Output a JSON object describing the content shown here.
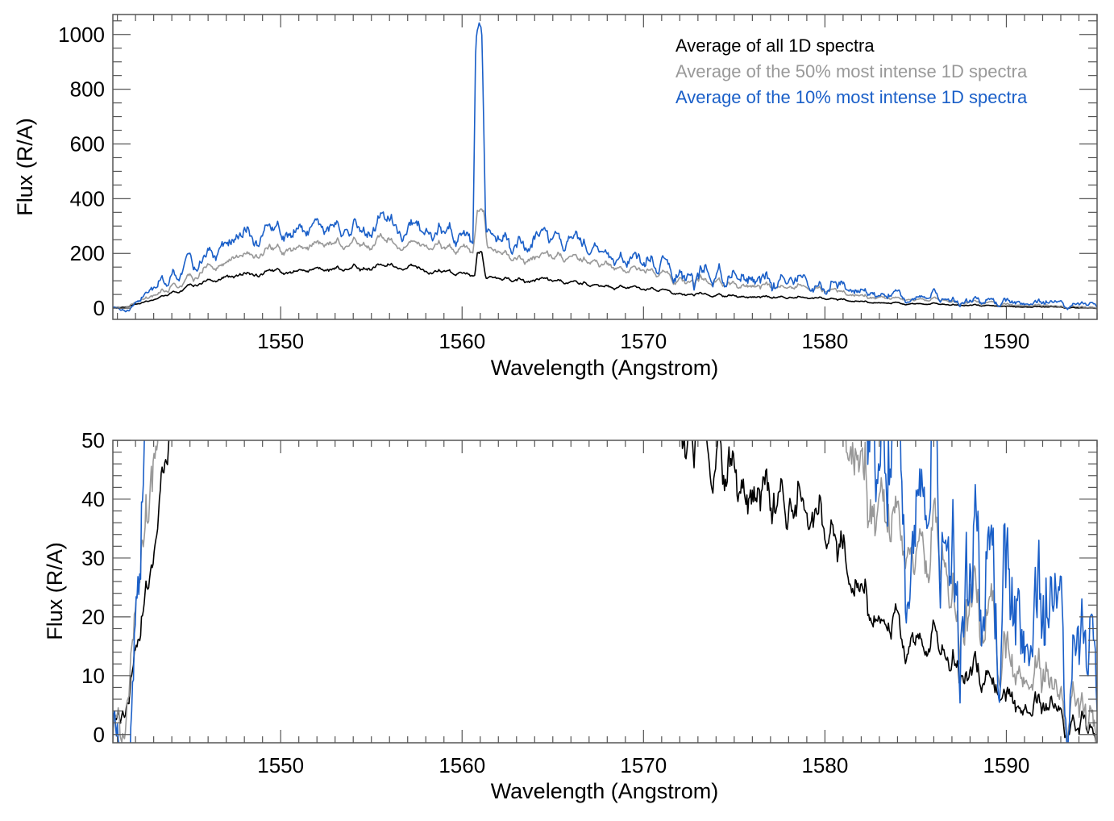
{
  "chart_data": [
    {
      "type": "line",
      "panel": "top",
      "title": "",
      "xlabel": "Wavelength (Angstrom)",
      "ylabel": "Flux (R/A)",
      "xlim": [
        1540.75,
        1595.0
      ],
      "ylim": [
        -41,
        1073
      ],
      "xticks": [
        1550,
        1560,
        1570,
        1580,
        1590
      ],
      "xtick_labels": [
        "1550",
        "1560",
        "1570",
        "1580",
        "1590"
      ],
      "x_minor_step": 1,
      "yticks": [
        0,
        200,
        400,
        600,
        800,
        1000
      ],
      "ytick_labels": [
        "0",
        "200",
        "400",
        "600",
        "800",
        "1000"
      ],
      "y_minor_step": 50,
      "grid": false,
      "legend_position": "top-right",
      "noise_seed": 7,
      "series": [
        {
          "name": "Average of all 1D spectra",
          "color": "#000000",
          "noise_amp": 12,
          "anchors": [
            [
              1540.75,
              5
            ],
            [
              1541.5,
              5
            ],
            [
              1543,
              30
            ],
            [
              1545,
              80
            ],
            [
              1547,
              115
            ],
            [
              1549,
              130
            ],
            [
              1552,
              140
            ],
            [
              1555,
              150
            ],
            [
              1557,
              150
            ],
            [
              1559,
              130
            ],
            [
              1560.7,
              125
            ],
            [
              1560.85,
              210
            ],
            [
              1561.1,
              210
            ],
            [
              1561.3,
              115
            ],
            [
              1563,
              110
            ],
            [
              1566,
              95
            ],
            [
              1568,
              80
            ],
            [
              1570,
              70
            ],
            [
              1573,
              50
            ],
            [
              1576,
              40
            ],
            [
              1580,
              35
            ],
            [
              1583,
              20
            ],
            [
              1585,
              15
            ],
            [
              1588,
              10
            ],
            [
              1591,
              5
            ],
            [
              1595,
              0
            ]
          ]
        },
        {
          "name": "Average of the 50% most intense 1D spectra",
          "color": "#999999",
          "noise_amp": 22,
          "anchors": [
            [
              1540.75,
              5
            ],
            [
              1541.5,
              5
            ],
            [
              1543,
              45
            ],
            [
              1545,
              110
            ],
            [
              1547,
              170
            ],
            [
              1549,
              210
            ],
            [
              1552,
              230
            ],
            [
              1555,
              240
            ],
            [
              1557,
              235
            ],
            [
              1559,
              220
            ],
            [
              1560.6,
              215
            ],
            [
              1560.85,
              360
            ],
            [
              1561.2,
              360
            ],
            [
              1561.4,
              230
            ],
            [
              1563,
              190
            ],
            [
              1566,
              180
            ],
            [
              1568,
              160
            ],
            [
              1570,
              135
            ],
            [
              1573,
              100
            ],
            [
              1576,
              80
            ],
            [
              1580,
              65
            ],
            [
              1583,
              40
            ],
            [
              1585,
              30
            ],
            [
              1588,
              20
            ],
            [
              1591,
              10
            ],
            [
              1595,
              0
            ]
          ]
        },
        {
          "name": "Average of the 10% most intense 1D spectra",
          "color": "#1a5fc8",
          "noise_amp": 45,
          "anchors": [
            [
              1540.75,
              5
            ],
            [
              1541.5,
              -5
            ],
            [
              1543,
              60
            ],
            [
              1545,
              150
            ],
            [
              1547,
              240
            ],
            [
              1549,
              270
            ],
            [
              1552,
              290
            ],
            [
              1555,
              300
            ],
            [
              1557,
              295
            ],
            [
              1559,
              270
            ],
            [
              1560.6,
              260
            ],
            [
              1560.75,
              1000
            ],
            [
              1560.95,
              1070
            ],
            [
              1561.1,
              1000
            ],
            [
              1561.3,
              300
            ],
            [
              1563,
              250
            ],
            [
              1566,
              240
            ],
            [
              1568,
              200
            ],
            [
              1570,
              170
            ],
            [
              1573,
              120
            ],
            [
              1576,
              100
            ],
            [
              1580,
              85
            ],
            [
              1583,
              55
            ],
            [
              1585,
              40
            ],
            [
              1588,
              25
            ],
            [
              1591,
              20
            ],
            [
              1595,
              10
            ]
          ]
        }
      ]
    },
    {
      "type": "line",
      "panel": "bottom",
      "title": "",
      "xlabel": "Wavelength (Angstrom)",
      "ylabel": "Flux (R/A)",
      "xlim": [
        1540.75,
        1595.0
      ],
      "ylim": [
        -1.4,
        50
      ],
      "xticks": [
        1550,
        1560,
        1570,
        1580,
        1590
      ],
      "xtick_labels": [
        "1550",
        "1560",
        "1570",
        "1580",
        "1590"
      ],
      "x_minor_step": 1,
      "yticks": [
        0,
        10,
        20,
        30,
        40,
        50
      ],
      "ytick_labels": [
        "0",
        "10",
        "20",
        "30",
        "40",
        "50"
      ],
      "y_minor_step": 2,
      "grid": false,
      "note": "Same three series as the top panel, shown zoomed to 0–50 R/A (clipped at the frame)."
    }
  ]
}
